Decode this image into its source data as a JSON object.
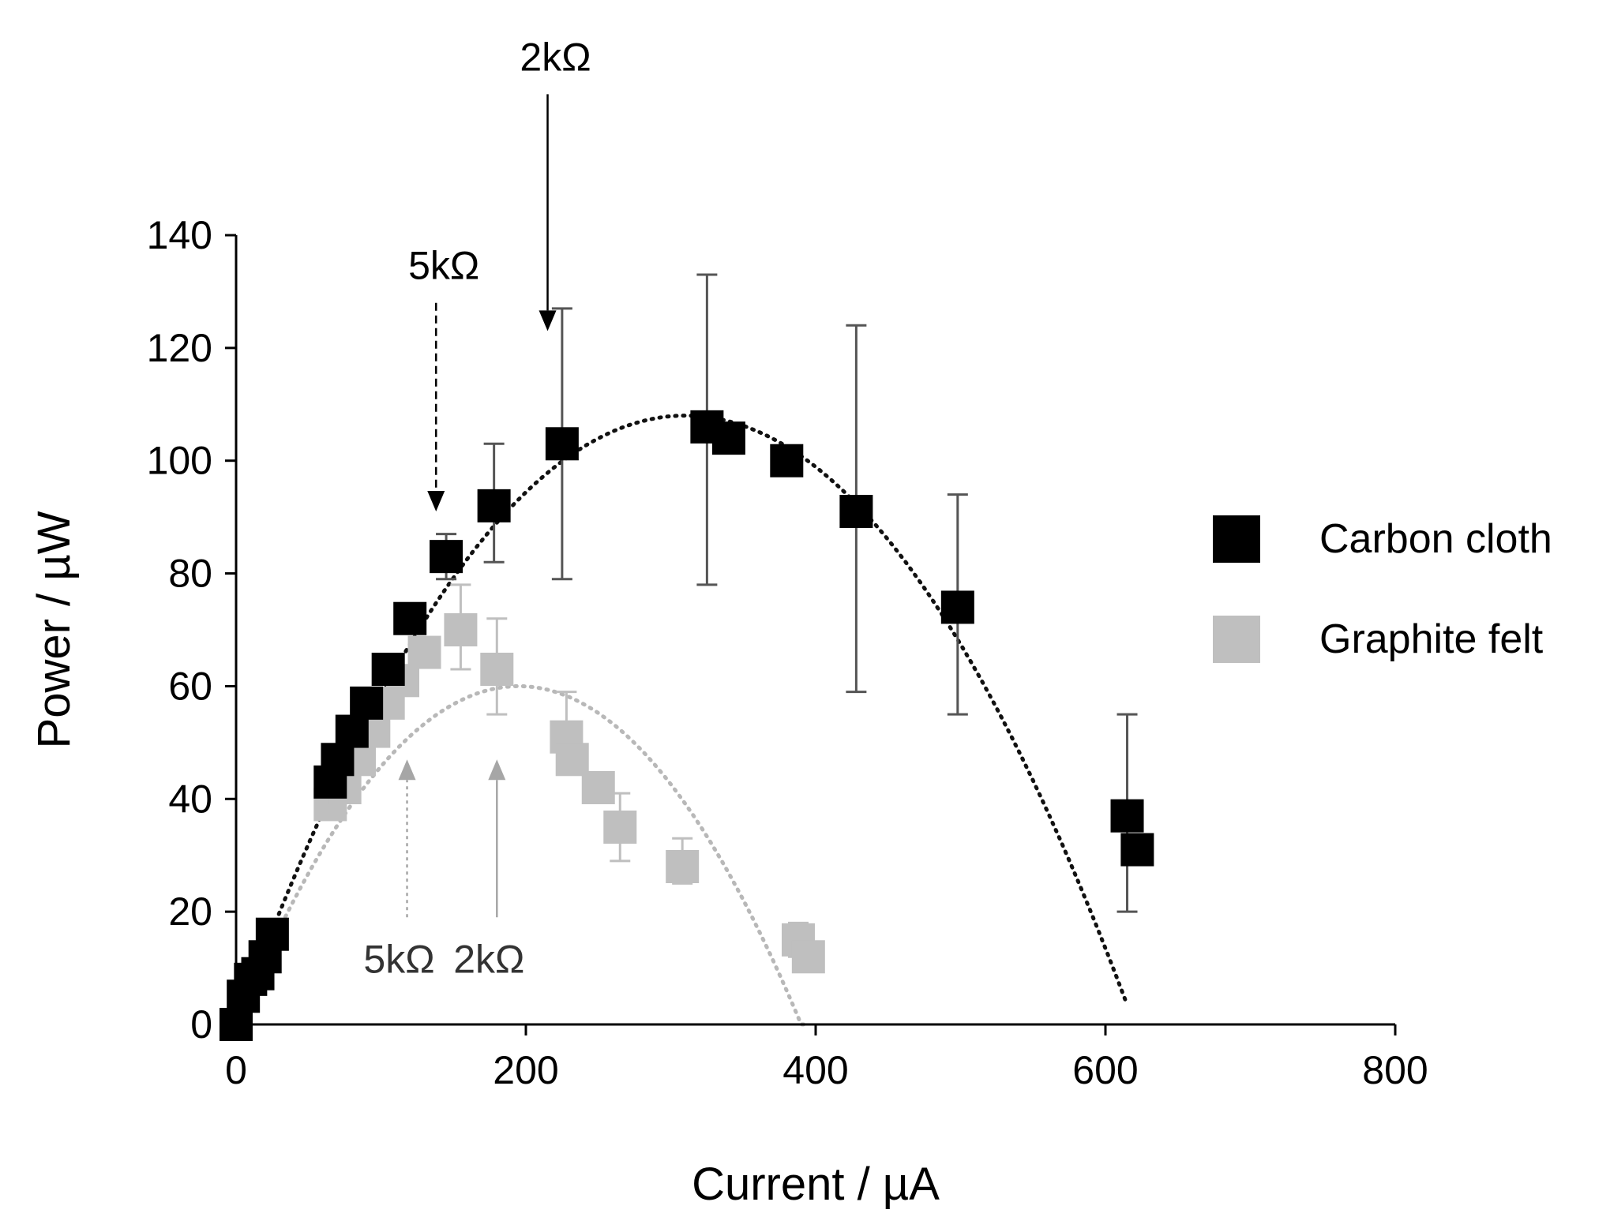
{
  "chart_data": {
    "type": "scatter",
    "title": "",
    "xlabel": "Current / µA",
    "ylabel": "Power / µW",
    "xlim": [
      0,
      800
    ],
    "ylim": [
      0,
      140
    ],
    "xticks": [
      0,
      200,
      400,
      600,
      800
    ],
    "yticks": [
      0,
      20,
      40,
      60,
      80,
      100,
      120,
      140
    ],
    "grid": false,
    "legend_position": "right",
    "colors": {
      "carbon": "#000000",
      "graphite": "#bfbfbf",
      "axis": "#000000",
      "errorbar": "#555555"
    },
    "series": [
      {
        "name": "Carbon cloth",
        "color": "#000000",
        "points": [
          {
            "x": 0,
            "y": 0
          },
          {
            "x": 5,
            "y": 5
          },
          {
            "x": 10,
            "y": 8
          },
          {
            "x": 15,
            "y": 9
          },
          {
            "x": 20,
            "y": 12
          },
          {
            "x": 25,
            "y": 16
          },
          {
            "x": 65,
            "y": 43
          },
          {
            "x": 70,
            "y": 47
          },
          {
            "x": 80,
            "y": 52
          },
          {
            "x": 90,
            "y": 57
          },
          {
            "x": 105,
            "y": 63
          },
          {
            "x": 120,
            "y": 72
          },
          {
            "x": 145,
            "y": 83,
            "err": [
              79,
              87
            ]
          },
          {
            "x": 178,
            "y": 92,
            "err": [
              82,
              103
            ]
          },
          {
            "x": 225,
            "y": 103,
            "err": [
              79,
              127
            ]
          },
          {
            "x": 325,
            "y": 106,
            "err": [
              78,
              133
            ]
          },
          {
            "x": 340,
            "y": 104
          },
          {
            "x": 380,
            "y": 100
          },
          {
            "x": 428,
            "y": 91,
            "err": [
              59,
              124
            ]
          },
          {
            "x": 498,
            "y": 74,
            "err": [
              55,
              94
            ]
          },
          {
            "x": 615,
            "y": 37,
            "err": [
              20,
              55
            ]
          },
          {
            "x": 622,
            "y": 31
          }
        ],
        "trendline": {
          "type": "polynomial",
          "x_range": [
            0,
            615
          ],
          "vertex": [
            310,
            108
          ]
        }
      },
      {
        "name": "Graphite felt",
        "color": "#bfbfbf",
        "points": [
          {
            "x": 0,
            "y": 0
          },
          {
            "x": 65,
            "y": 39
          },
          {
            "x": 75,
            "y": 42
          },
          {
            "x": 85,
            "y": 47
          },
          {
            "x": 95,
            "y": 52
          },
          {
            "x": 105,
            "y": 57
          },
          {
            "x": 115,
            "y": 61
          },
          {
            "x": 130,
            "y": 66
          },
          {
            "x": 155,
            "y": 70,
            "err": [
              63,
              78
            ]
          },
          {
            "x": 180,
            "y": 63,
            "err": [
              55,
              72
            ]
          },
          {
            "x": 228,
            "y": 51,
            "err": [
              47,
              59
            ]
          },
          {
            "x": 232,
            "y": 47
          },
          {
            "x": 250,
            "y": 42
          },
          {
            "x": 265,
            "y": 35,
            "err": [
              29,
              41
            ]
          },
          {
            "x": 308,
            "y": 28,
            "err": [
              25,
              33
            ]
          },
          {
            "x": 388,
            "y": 15,
            "err": [
              12,
              18
            ]
          },
          {
            "x": 395,
            "y": 12
          }
        ],
        "trendline": {
          "type": "polynomial",
          "x_range": [
            0,
            395
          ],
          "vertex": [
            195,
            60
          ]
        }
      }
    ],
    "annotations": [
      {
        "text": "2kΩ",
        "series": "Carbon cloth",
        "arrow": "down",
        "style": "solid",
        "x": 215,
        "y_from": 165,
        "y_to": 123
      },
      {
        "text": "5kΩ",
        "series": "Carbon cloth",
        "arrow": "down",
        "style": "dashed",
        "x": 138,
        "y_from": 128,
        "y_to": 91
      },
      {
        "text": "5kΩ",
        "series": "Graphite felt",
        "arrow": "up",
        "style": "dotted",
        "x": 118,
        "y_from": 19,
        "y_to": 47
      },
      {
        "text": "2kΩ",
        "series": "Graphite felt",
        "arrow": "up",
        "style": "solid",
        "x": 180,
        "y_from": 19,
        "y_to": 47
      }
    ]
  }
}
